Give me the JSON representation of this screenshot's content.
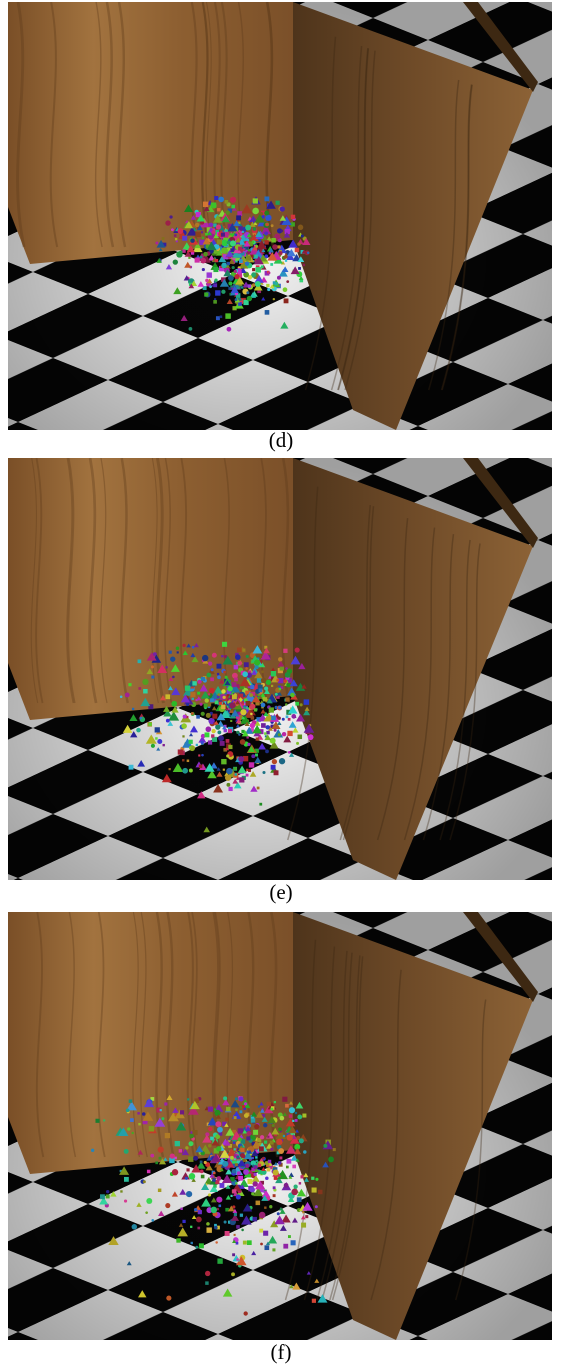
{
  "panels": [
    {
      "caption": "(d)"
    },
    {
      "caption": "(e)"
    },
    {
      "caption": "(f)"
    }
  ]
}
